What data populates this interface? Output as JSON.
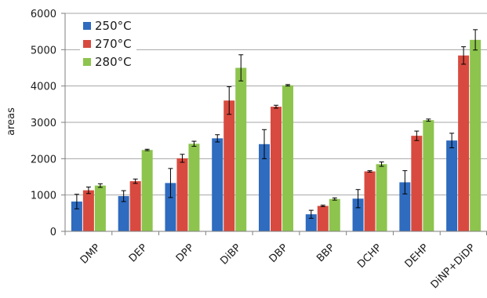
{
  "chart_data": {
    "type": "bar",
    "title": "",
    "xlabel": "",
    "ylabel": "areas",
    "ylim": [
      0,
      6000
    ],
    "yticks": [
      0,
      1000,
      2000,
      3000,
      4000,
      5000,
      6000
    ],
    "grid": "horizontal",
    "legend_position": "top-left",
    "error_bars": true,
    "categories": [
      "DMP",
      "DEP",
      "DPP",
      "DiBP",
      "DBP",
      "BBP",
      "DCHP",
      "DEHP",
      "DiNP+DiDP"
    ],
    "series": [
      {
        "name": "250°C",
        "color": "#2f6bbf",
        "values": [
          820,
          970,
          1330,
          2560,
          2400,
          470,
          900,
          1350,
          2500
        ],
        "errors": [
          200,
          150,
          400,
          100,
          400,
          110,
          250,
          320,
          200
        ]
      },
      {
        "name": "270°C",
        "color": "#d84a3f",
        "values": [
          1130,
          1380,
          2010,
          3600,
          3430,
          700,
          1650,
          2630,
          4840
        ],
        "errors": [
          90,
          60,
          110,
          380,
          40,
          20,
          20,
          130,
          240
        ]
      },
      {
        "name": "280°C",
        "color": "#8dc44e",
        "values": [
          1260,
          2240,
          2410,
          4500,
          4020,
          890,
          1850,
          3060,
          5270
        ],
        "errors": [
          50,
          20,
          70,
          360,
          20,
          30,
          60,
          30,
          280
        ]
      }
    ]
  }
}
